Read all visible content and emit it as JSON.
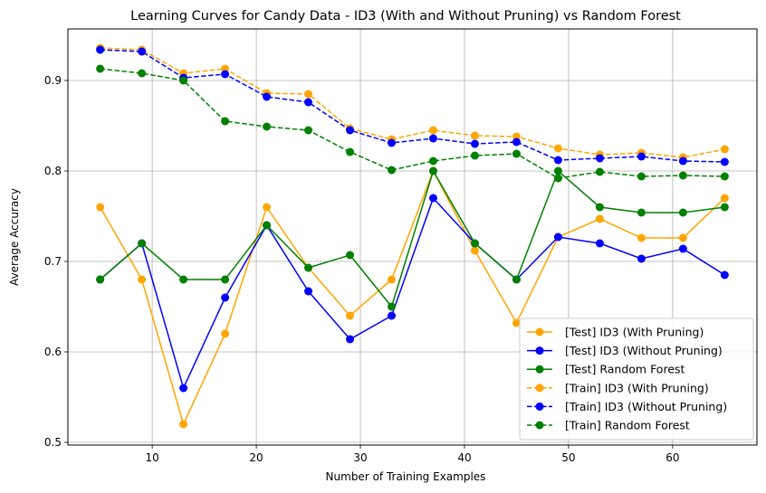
{
  "chart_data": {
    "type": "line",
    "title": "Learning Curves for Candy Data - ID3 (With and Without Pruning) vs Random Forest",
    "xlabel": "Number of Training Examples",
    "ylabel": "Average Accuracy",
    "xlim": [
      1.9,
      68.1
    ],
    "ylim": [
      0.497,
      0.957
    ],
    "xticks": [
      10,
      20,
      30,
      40,
      50,
      60
    ],
    "yticks": [
      0.5,
      0.6,
      0.7,
      0.8,
      0.9
    ],
    "grid": true,
    "legend_position": "lower-right",
    "x": [
      5,
      9,
      13,
      17,
      21,
      25,
      29,
      33,
      37,
      41,
      45,
      49,
      53,
      57,
      61,
      65
    ],
    "series": [
      {
        "name": "[Test] ID3 (With Pruning)",
        "color": "#FFA500",
        "style": "solid",
        "values": [
          0.76,
          0.68,
          0.52,
          0.62,
          0.76,
          0.693,
          0.64,
          0.68,
          0.8,
          0.712,
          0.632,
          0.727,
          0.747,
          0.726,
          0.726,
          0.77
        ]
      },
      {
        "name": "[Test] ID3 (Without Pruning)",
        "color": "#0000FF",
        "style": "solid",
        "values": [
          0.68,
          0.72,
          0.56,
          0.66,
          0.74,
          0.667,
          0.614,
          0.64,
          0.77,
          0.72,
          0.68,
          0.727,
          0.72,
          0.703,
          0.714,
          0.685
        ]
      },
      {
        "name": "[Test] Random Forest",
        "color": "#008000",
        "style": "solid",
        "values": [
          0.68,
          0.72,
          0.68,
          0.68,
          0.74,
          0.693,
          0.707,
          0.65,
          0.8,
          0.72,
          0.68,
          0.8,
          0.76,
          0.754,
          0.754,
          0.76
        ]
      },
      {
        "name": "[Train] ID3 (With Pruning)",
        "color": "#FFA500",
        "style": "dashed",
        "values": [
          0.936,
          0.934,
          0.908,
          0.913,
          0.886,
          0.885,
          0.847,
          0.835,
          0.845,
          0.839,
          0.838,
          0.825,
          0.818,
          0.82,
          0.815,
          0.824
        ]
      },
      {
        "name": "[Train] ID3 (Without Pruning)",
        "color": "#0000FF",
        "style": "dashed",
        "values": [
          0.934,
          0.932,
          0.903,
          0.907,
          0.882,
          0.876,
          0.845,
          0.831,
          0.836,
          0.83,
          0.832,
          0.812,
          0.814,
          0.816,
          0.811,
          0.81
        ]
      },
      {
        "name": "[Train] Random Forest",
        "color": "#008000",
        "style": "dashed",
        "values": [
          0.913,
          0.908,
          0.9,
          0.855,
          0.849,
          0.845,
          0.821,
          0.801,
          0.811,
          0.817,
          0.819,
          0.792,
          0.799,
          0.794,
          0.795,
          0.794
        ]
      }
    ]
  }
}
